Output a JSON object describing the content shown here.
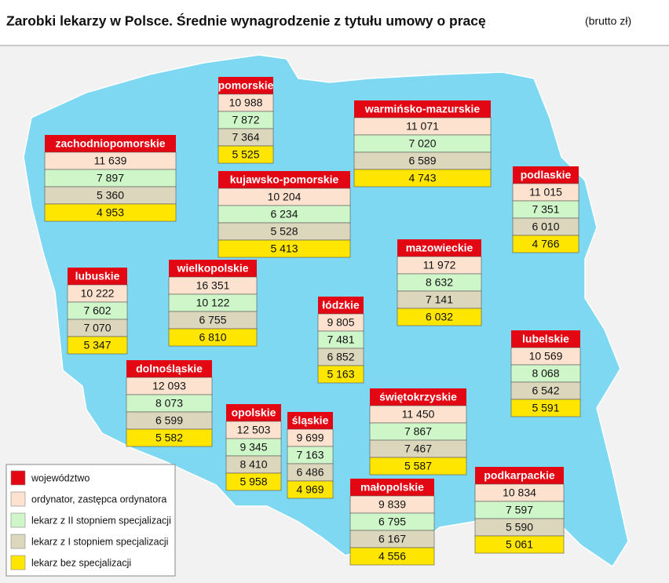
{
  "header": {
    "title": "Zarobki lekarzy w Polsce. Średnie wynagrodzenie z tytułu umowy o pracę",
    "unit": "(brutto zł)"
  },
  "legend": [
    "województwo",
    "ordynator, zastępca ordynatora",
    "lekarz z II stopniem specjalizacji",
    "lekarz z I stopniem specjalizacji",
    "lekarz bez specjalizacji"
  ],
  "regions": [
    {
      "name": "pomorskie",
      "values": [
        "10 988",
        "7 872",
        "7 364",
        "5 525"
      ]
    },
    {
      "name": "warmińsko-mazurskie",
      "values": [
        "11 071",
        "7 020",
        "6 589",
        "4 743"
      ]
    },
    {
      "name": "zachodniopomorskie",
      "values": [
        "11 639",
        "7 897",
        "5 360",
        "4 953"
      ]
    },
    {
      "name": "kujawsko-pomorskie",
      "values": [
        "10 204",
        "6 234",
        "5 528",
        "5 413"
      ]
    },
    {
      "name": "podlaskie",
      "values": [
        "11 015",
        "7 351",
        "6 010",
        "4 766"
      ]
    },
    {
      "name": "mazowieckie",
      "values": [
        "11 972",
        "8 632",
        "7 141",
        "6 032"
      ]
    },
    {
      "name": "lubuskie",
      "values": [
        "10 222",
        "7 602",
        "7 070",
        "5 347"
      ]
    },
    {
      "name": "wielkopolskie",
      "values": [
        "16 351",
        "10 122",
        "6 755",
        "6 810"
      ]
    },
    {
      "name": "łódzkie",
      "values": [
        "9 805",
        "7 481",
        "6 852",
        "5 163"
      ]
    },
    {
      "name": "lubelskie",
      "values": [
        "10 569",
        "8 068",
        "6 542",
        "5 591"
      ]
    },
    {
      "name": "dolnośląskie",
      "values": [
        "12 093",
        "8 073",
        "6 599",
        "5 582"
      ]
    },
    {
      "name": "świętokrzyskie",
      "values": [
        "11 450",
        "7 867",
        "7 467",
        "5 587"
      ]
    },
    {
      "name": "opolskie",
      "values": [
        "12 503",
        "9 345",
        "8 410",
        "5 958"
      ]
    },
    {
      "name": "śląskie",
      "values": [
        "9 699",
        "7 163",
        "6 486",
        "4 969"
      ]
    },
    {
      "name": "małopolskie",
      "values": [
        "9 839",
        "6 795",
        "6 167",
        "4 556"
      ]
    },
    {
      "name": "podkarpackie",
      "values": [
        "10 834",
        "7 597",
        "5 590",
        "5 061"
      ]
    }
  ]
}
